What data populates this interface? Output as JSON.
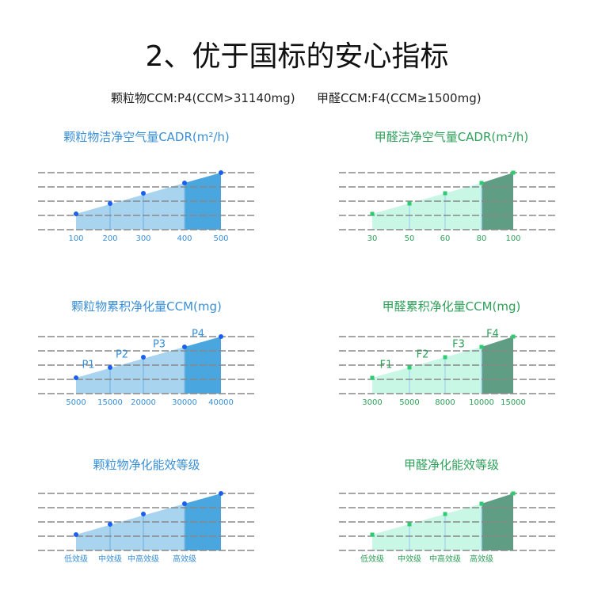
{
  "header": {
    "title": "2、优于国标的安心指标",
    "particle_grade": "颗粒物CCM:P4(CCM>31140mg)",
    "formaldehyde_grade": "甲醛CCM:F4(CCM≥1500mg)"
  },
  "colors": {
    "particle_title": "#3a8fd6",
    "particle_fill_light": "#a8d4ef",
    "particle_fill_dark": "#4aa6de",
    "particle_point": "#1a5ff0",
    "formaldehyde_title": "#2fa05a",
    "formaldehyde_fill_light": "#c8f7e6",
    "formaldehyde_fill_dark": "#5f9e85",
    "formaldehyde_point": "#2ecc71",
    "grid": "#888888"
  },
  "charts": [
    {
      "title": "颗粒物洁净空气量CADR(m²/h)",
      "family": "particle",
      "categories": [
        "100",
        "200",
        "300",
        "400",
        "500"
      ],
      "point_labels": []
    },
    {
      "title": "甲醛洁净空气量CADR(m²/h)",
      "family": "formaldehyde",
      "categories": [
        "30",
        "50",
        "60",
        "80",
        "100"
      ],
      "point_labels": []
    },
    {
      "title": "颗粒物累积净化量CCM(mg)",
      "family": "particle",
      "categories": [
        "5000",
        "15000",
        "20000",
        "30000",
        "40000"
      ],
      "point_labels": [
        "P1",
        "P2",
        "P3",
        "P4"
      ]
    },
    {
      "title": "甲醛累积净化量CCM(mg)",
      "family": "formaldehyde",
      "categories": [
        "3000",
        "5000",
        "8000",
        "10000",
        "15000"
      ],
      "point_labels": [
        "F1",
        "F2",
        "F3",
        "F4"
      ]
    },
    {
      "title": "颗粒物净化能效等级",
      "family": "particle",
      "categories": [
        "低效级",
        "中效级",
        "中高效级",
        "高效级",
        ""
      ],
      "point_labels": []
    },
    {
      "title": "甲醛净化能效等级",
      "family": "formaldehyde",
      "categories": [
        "低效级",
        "中效级",
        "中高效级",
        "高效级",
        ""
      ],
      "point_labels": []
    }
  ]
}
